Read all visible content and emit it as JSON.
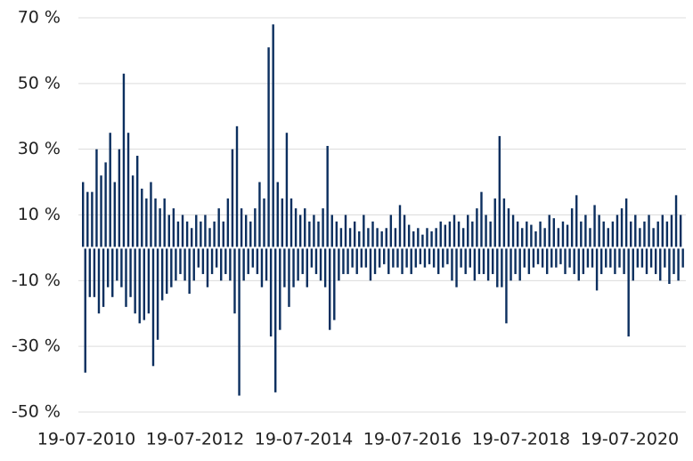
{
  "chart_data": {
    "type": "bar",
    "color": "#0c2f5f",
    "grid": true,
    "ylim": [
      -50,
      70
    ],
    "yticks": [
      {
        "value": -50,
        "label": "-50 %"
      },
      {
        "value": -30,
        "label": "-30 %"
      },
      {
        "value": -10,
        "label": "-10 %"
      },
      {
        "value": 10,
        "label": "10 %"
      },
      {
        "value": 30,
        "label": "30 %"
      },
      {
        "value": 50,
        "label": "50 %"
      },
      {
        "value": 70,
        "label": "70 %"
      }
    ],
    "categories": [
      "19-07-2010",
      null,
      null,
      null,
      null,
      null,
      null,
      null,
      null,
      null,
      null,
      null,
      null,
      null,
      null,
      null,
      null,
      null,
      null,
      null,
      null,
      null,
      null,
      null,
      null,
      null,
      null,
      null,
      null,
      null,
      null,
      null,
      null,
      null,
      null,
      null,
      null,
      null,
      null,
      null,
      null,
      null,
      null,
      null,
      null,
      null,
      null,
      null,
      "19-07-2012",
      null,
      null,
      null,
      null,
      null,
      null,
      null,
      null,
      null,
      null,
      null,
      null,
      null,
      null,
      null,
      null,
      null,
      null,
      null,
      null,
      null,
      null,
      null,
      null,
      null,
      null,
      null,
      null,
      null,
      null,
      null,
      null,
      null,
      null,
      null,
      null,
      null,
      null,
      null,
      null,
      null,
      null,
      null,
      null,
      null,
      null,
      null,
      "19-07-2014",
      null,
      null,
      null,
      null,
      null,
      null,
      null,
      null,
      null,
      null,
      null,
      null,
      null,
      null,
      null,
      null,
      null,
      null,
      null,
      null,
      null,
      null,
      null,
      null,
      null,
      null,
      null,
      null,
      null,
      null,
      null,
      null,
      null,
      null,
      null,
      null,
      null,
      null,
      null,
      null,
      null,
      null,
      null,
      null,
      null,
      null,
      null,
      "19-07-2016",
      null,
      null,
      null,
      null,
      null,
      null,
      null,
      null,
      null,
      null,
      null,
      null,
      null,
      null,
      null,
      null,
      null,
      null,
      null,
      null,
      null,
      null,
      null,
      null,
      null,
      null,
      null,
      null,
      null,
      null,
      null,
      null,
      null,
      null,
      null,
      null,
      null,
      null,
      null,
      null,
      null,
      null,
      null,
      null,
      null,
      null,
      null,
      "19-07-2018",
      null,
      null,
      null,
      null,
      null,
      null,
      null,
      null,
      null,
      null,
      null,
      null,
      null,
      null,
      null,
      null,
      null,
      null,
      null,
      null,
      null,
      null,
      null,
      null,
      null,
      null,
      null,
      null,
      null,
      null,
      null,
      null,
      null,
      null,
      null,
      null,
      null,
      null,
      null,
      null,
      null,
      null,
      null,
      null,
      null,
      null,
      null,
      "19-07-2020",
      null,
      null,
      null,
      null,
      null,
      null,
      null,
      null,
      null,
      null,
      null,
      null,
      null,
      null,
      null,
      null,
      null,
      null,
      null,
      null,
      null,
      null,
      null,
      null,
      null
    ],
    "values": [
      20,
      -38,
      17,
      -15,
      17,
      -15,
      30,
      -20,
      22,
      -18,
      26,
      -12,
      35,
      -15,
      20,
      -10,
      30,
      -12,
      53,
      -18,
      35,
      -15,
      22,
      -20,
      28,
      -23,
      18,
      -22,
      15,
      -20,
      20,
      -36,
      15,
      -28,
      12,
      -16,
      15,
      -14,
      10,
      -12,
      12,
      -10,
      8,
      -8,
      10,
      -10,
      8,
      -14,
      6,
      -10,
      10,
      -6,
      8,
      -8,
      10,
      -12,
      6,
      -8,
      8,
      -6,
      12,
      -10,
      8,
      -8,
      15,
      -10,
      30,
      -20,
      37,
      -45,
      12,
      -10,
      10,
      -8,
      8,
      -6,
      12,
      -8,
      20,
      -12,
      15,
      -10,
      61,
      -27,
      68,
      -44,
      20,
      -25,
      15,
      -12,
      35,
      -18,
      15,
      -12,
      12,
      -10,
      10,
      -8,
      12,
      -12,
      8,
      -6,
      10,
      -8,
      8,
      -10,
      12,
      -12,
      31,
      -25,
      10,
      -22,
      8,
      -10,
      6,
      -8,
      10,
      -8,
      6,
      -6,
      8,
      -8,
      5,
      -6,
      10,
      -6,
      6,
      -10,
      8,
      -8,
      6,
      -6,
      5,
      -5,
      6,
      -8,
      10,
      -6,
      6,
      -6,
      13,
      -8,
      10,
      -6,
      7,
      -8,
      5,
      -6,
      6,
      -5,
      4,
      -6,
      6,
      -5,
      5,
      -6,
      6,
      -8,
      8,
      -6,
      7,
      -5,
      8,
      -10,
      10,
      -12,
      8,
      -6,
      6,
      -8,
      10,
      -6,
      8,
      -10,
      12,
      -8,
      17,
      -8,
      10,
      -10,
      8,
      -8,
      15,
      -12,
      34,
      -12,
      15,
      -23,
      12,
      -10,
      10,
      -8,
      8,
      -10,
      6,
      -6,
      8,
      -8,
      7,
      -6,
      5,
      -5,
      8,
      -6,
      6,
      -8,
      10,
      -6,
      9,
      -6,
      6,
      -5,
      8,
      -8,
      7,
      -6,
      12,
      -8,
      16,
      -10,
      8,
      -8,
      10,
      -6,
      6,
      -6,
      13,
      -13,
      10,
      -8,
      8,
      -6,
      6,
      -6,
      8,
      -8,
      10,
      -6,
      12,
      -8,
      15,
      -27,
      8,
      -10,
      10,
      -6,
      6,
      -6,
      8,
      -8,
      10,
      -6,
      6,
      -8,
      8,
      -10,
      10,
      -6,
      8,
      -11,
      10,
      -8,
      16,
      -10,
      10,
      -6
    ]
  }
}
